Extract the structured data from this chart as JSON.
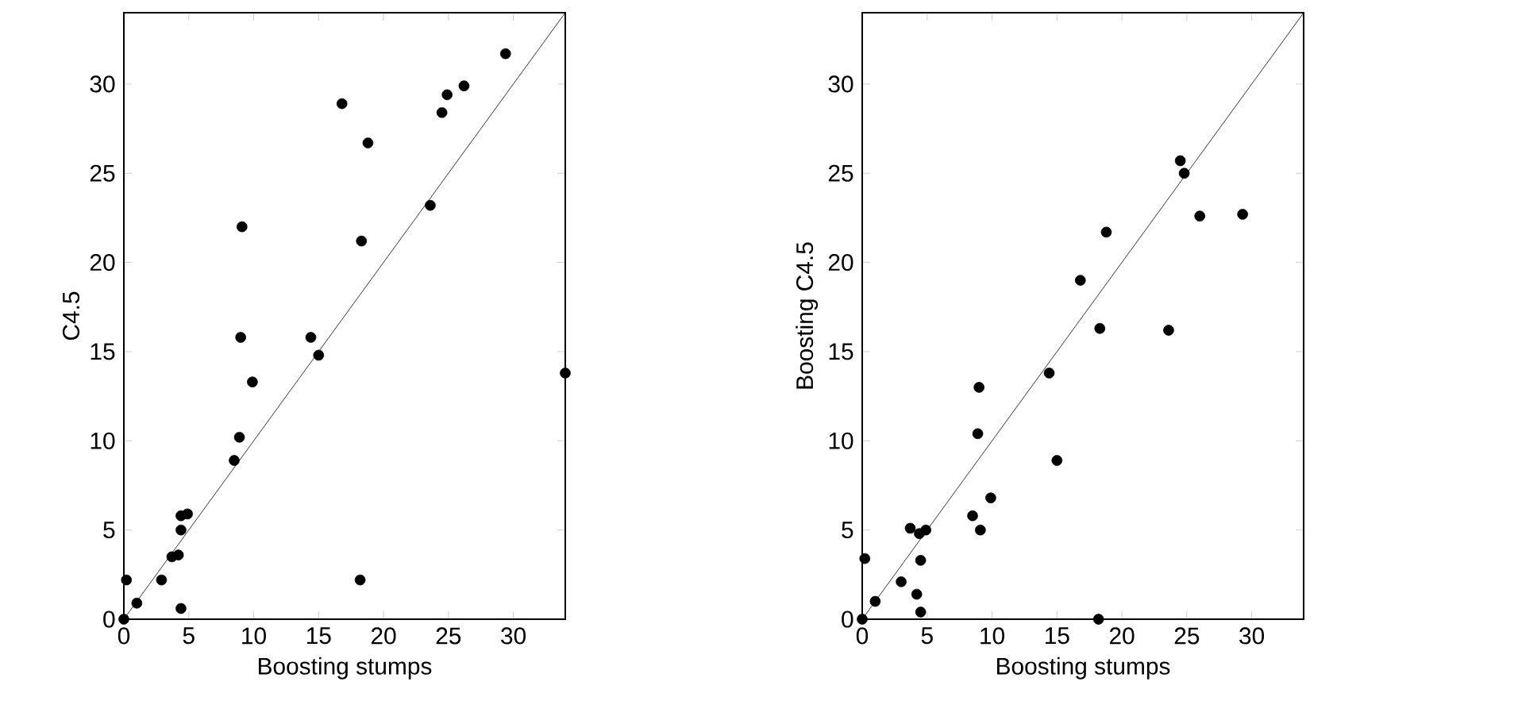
{
  "chart_data": [
    {
      "type": "scatter",
      "xlabel": "Boosting stumps",
      "ylabel": "C4.5",
      "xlim": [
        0,
        34
      ],
      "ylim": [
        0,
        34
      ],
      "xticks": [
        0,
        5,
        10,
        15,
        20,
        25,
        30
      ],
      "yticks": [
        0,
        5,
        10,
        15,
        20,
        25,
        30
      ],
      "series": [
        {
          "marker": "circle",
          "color": "#000000",
          "x": [
            0,
            0.2,
            1.0,
            2.9,
            3.7,
            4.2,
            4.4,
            4.4,
            4.9,
            4.4,
            8.5,
            8.9,
            9.9,
            15.0,
            18.2,
            9.0,
            9.1,
            14.4,
            16.8,
            18.8,
            18.3,
            23.6,
            24.5,
            24.9,
            26.2,
            29.4,
            34
          ],
          "values": [
            0,
            2.2,
            0.9,
            2.2,
            3.5,
            3.6,
            5.0,
            5.8,
            5.9,
            0.6,
            8.9,
            10.2,
            13.3,
            14.8,
            2.2,
            15.8,
            22.0,
            15.8,
            28.9,
            26.7,
            21.2,
            23.2,
            28.4,
            29.4,
            29.9,
            31.7,
            13.8
          ]
        },
        {
          "type": "line",
          "marker": "none",
          "color": "#000000",
          "x": [
            0,
            34
          ],
          "values": [
            0,
            34
          ]
        }
      ]
    },
    {
      "type": "scatter",
      "xlabel": "Boosting stumps",
      "ylabel": "Boosting C4.5",
      "xlim": [
        0,
        34
      ],
      "ylim": [
        0,
        34
      ],
      "xticks": [
        0,
        5,
        10,
        15,
        20,
        25,
        30
      ],
      "yticks": [
        0,
        5,
        10,
        15,
        20,
        25,
        30
      ],
      "series": [
        {
          "marker": "circle",
          "color": "#000000",
          "x": [
            0,
            0.2,
            1.0,
            3.0,
            3.7,
            4.2,
            4.4,
            4.5,
            4.5,
            4.9,
            8.5,
            8.9,
            9.0,
            9.1,
            9.9,
            14.4,
            15.0,
            18.2,
            16.8,
            18.3,
            18.8,
            23.6,
            24.5,
            24.8,
            26.0,
            29.3
          ],
          "values": [
            0,
            3.4,
            1.0,
            2.1,
            5.1,
            1.4,
            4.8,
            3.3,
            0.4,
            5.0,
            5.8,
            10.4,
            13.0,
            5.0,
            6.8,
            13.8,
            8.9,
            0,
            19.0,
            16.3,
            21.7,
            16.2,
            25.7,
            25.0,
            22.6,
            22.7
          ]
        },
        {
          "type": "line",
          "marker": "none",
          "color": "#000000",
          "x": [
            0,
            34
          ],
          "values": [
            0,
            34
          ]
        }
      ]
    }
  ]
}
